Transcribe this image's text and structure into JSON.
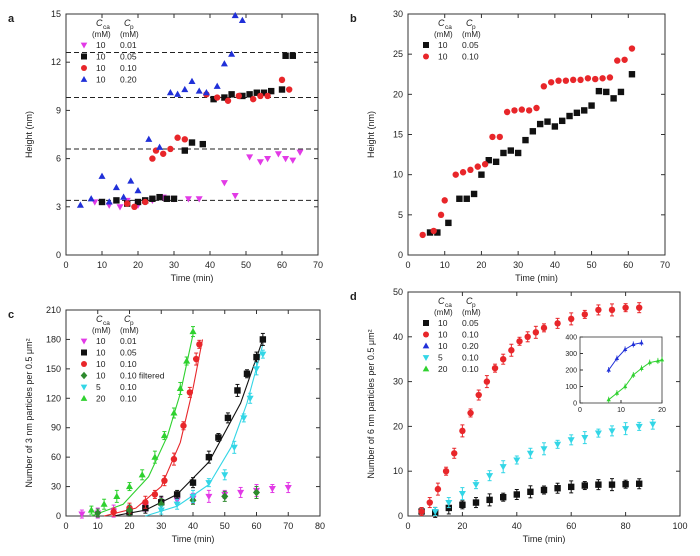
{
  "figure": {
    "panels": [
      "a",
      "b",
      "c",
      "d"
    ]
  },
  "chart_data": [
    {
      "panel": "a",
      "type": "scatter",
      "xlabel": "Time (min)",
      "ylabel": "Height (nm)",
      "xlim": [
        0,
        70
      ],
      "ylim": [
        0,
        15
      ],
      "xticks": [
        0,
        10,
        20,
        30,
        40,
        50,
        60,
        70
      ],
      "yticks": [
        0,
        3,
        6,
        9,
        12,
        15
      ],
      "hlines": [
        3.4,
        6.6,
        9.8,
        12.6
      ],
      "legend": {
        "header1": "C",
        "header1_sub": "ca",
        "header2": "C",
        "header2_sub": "p",
        "units": "(mM) (mM)",
        "position": "top-left"
      },
      "series": [
        {
          "name": "10 0.01",
          "ca": "10",
          "p": "0.01",
          "marker": "triangle-down",
          "color": "#e23ae6",
          "x": [
            8,
            12,
            15,
            17,
            20,
            24,
            27,
            30,
            34,
            37,
            44,
            47,
            51,
            54,
            56,
            59,
            61,
            63,
            65
          ],
          "y": [
            3.3,
            3.1,
            3.0,
            3.4,
            3.1,
            3.4,
            3.6,
            3.5,
            3.5,
            3.5,
            4.5,
            3.7,
            6.1,
            5.8,
            6.0,
            6.3,
            6.0,
            5.9,
            6.4
          ]
        },
        {
          "name": "10 0.05",
          "ca": "10",
          "p": "0.05",
          "marker": "square",
          "color": "#111111",
          "x": [
            10,
            14,
            17,
            20,
            22,
            24,
            26,
            28,
            30,
            33,
            35,
            38,
            41,
            44,
            46,
            49,
            51,
            53,
            55,
            57,
            60,
            61,
            63
          ],
          "y": [
            3.3,
            3.4,
            3.2,
            3.3,
            3.4,
            3.5,
            3.6,
            3.5,
            3.5,
            6.5,
            7.0,
            6.9,
            9.7,
            9.8,
            10.0,
            9.9,
            10.0,
            10.1,
            10.1,
            10.2,
            10.3,
            12.4,
            12.4
          ]
        },
        {
          "name": "10 0.10",
          "ca": "10",
          "p": "0.10",
          "marker": "circle",
          "color": "#e8262a",
          "x": [
            17,
            19,
            22,
            24,
            25,
            27,
            29,
            31,
            33,
            39,
            42,
            45,
            48,
            52,
            54,
            56,
            60,
            62
          ],
          "y": [
            3.2,
            3.0,
            3.3,
            6.0,
            6.5,
            6.3,
            6.6,
            7.3,
            7.2,
            10.0,
            9.8,
            9.6,
            9.9,
            9.7,
            9.9,
            9.9,
            10.9,
            10.3
          ]
        },
        {
          "name": "10 0.20",
          "ca": "10",
          "p": "0.20",
          "marker": "triangle-up",
          "color": "#2030d8",
          "x": [
            4,
            7,
            10,
            12,
            14,
            16,
            18,
            20,
            23,
            26,
            29,
            31,
            33,
            35,
            37,
            39,
            42,
            44,
            46,
            47,
            49
          ],
          "y": [
            3.1,
            3.5,
            4.9,
            3.3,
            4.2,
            3.6,
            4.6,
            4.0,
            7.2,
            6.7,
            10.1,
            10.0,
            10.3,
            10.8,
            10.2,
            10.1,
            10.5,
            11.9,
            12.5,
            14.9,
            14.6
          ]
        }
      ]
    },
    {
      "panel": "b",
      "type": "scatter",
      "xlabel": "Time (min)",
      "ylabel": "Height (nm)",
      "xlim": [
        0,
        70
      ],
      "ylim": [
        0,
        30
      ],
      "xticks": [
        0,
        10,
        20,
        30,
        40,
        50,
        60,
        70
      ],
      "yticks": [
        0,
        5,
        10,
        15,
        20,
        25,
        30
      ],
      "legend": {
        "header1": "C",
        "header1_sub": "ca",
        "header2": "C",
        "header2_sub": "p",
        "units": "(mM) (mM)",
        "position": "top-left"
      },
      "series": [
        {
          "name": "10 0.05",
          "ca": "10",
          "p": "0.05",
          "marker": "square",
          "color": "#111111",
          "x": [
            6,
            8,
            11,
            14,
            16,
            18,
            20,
            22,
            24,
            26,
            28,
            30,
            32,
            34,
            36,
            38,
            40,
            42,
            44,
            46,
            48,
            50,
            52,
            54,
            56,
            58,
            61
          ],
          "y": [
            2.8,
            2.8,
            4.0,
            7.0,
            7.0,
            7.6,
            10.0,
            11.8,
            11.6,
            12.7,
            13.0,
            12.7,
            14.3,
            15.4,
            16.3,
            16.6,
            16.0,
            16.7,
            17.3,
            17.7,
            18.0,
            18.6,
            20.4,
            20.3,
            19.5,
            20.3,
            22.5
          ]
        },
        {
          "name": "10 0.10",
          "ca": "10",
          "p": "0.10",
          "marker": "circle",
          "color": "#e8262a",
          "x": [
            4,
            7,
            9,
            10,
            13,
            15,
            17,
            19,
            21,
            23,
            25,
            27,
            29,
            31,
            33,
            35,
            37,
            39,
            41,
            43,
            45,
            47,
            49,
            51,
            53,
            55,
            57,
            59,
            61
          ],
          "y": [
            2.5,
            3.0,
            5.0,
            6.8,
            10.0,
            10.3,
            10.6,
            11.0,
            11.3,
            14.7,
            14.7,
            17.8,
            18.0,
            18.1,
            18.0,
            18.3,
            21.0,
            21.5,
            21.7,
            21.7,
            21.8,
            21.8,
            22.0,
            21.9,
            22.0,
            22.1,
            24.2,
            24.3,
            25.7
          ]
        }
      ]
    },
    {
      "panel": "c",
      "type": "scatter",
      "xlabel": "Time (min)",
      "ylabel": "Number of 3 nm particles per 0.5 μm²",
      "xlim": [
        0,
        80
      ],
      "ylim": [
        0,
        210
      ],
      "xticks": [
        0,
        10,
        20,
        30,
        40,
        50,
        60,
        70,
        80
      ],
      "yticks": [
        0,
        30,
        60,
        90,
        120,
        150,
        180,
        210
      ],
      "legend": {
        "header1": "C",
        "header1_sub": "ca",
        "header2": "C",
        "header2_sub": "p",
        "units": "(mM) (mM)",
        "position": "top-left"
      },
      "series": [
        {
          "name": "10 0.01",
          "ca": "10",
          "p": "0.01",
          "marker": "triangle-down",
          "color": "#e23ae6",
          "x": [
            5,
            10,
            15,
            20,
            25,
            30,
            35,
            40,
            45,
            50,
            55,
            60,
            65,
            70
          ],
          "y": [
            2,
            3,
            5,
            7,
            10,
            13,
            16,
            18,
            20,
            22,
            24,
            26,
            28,
            29
          ]
        },
        {
          "name": "10 0.05",
          "ca": "10",
          "p": "0.05",
          "marker": "square",
          "color": "#111111",
          "x": [
            20,
            25,
            30,
            35,
            40,
            45,
            48,
            51,
            54,
            57,
            60,
            62
          ],
          "y": [
            4,
            8,
            14,
            22,
            34,
            60,
            80,
            100,
            128,
            145,
            162,
            180
          ],
          "fit_x": [
            15,
            25,
            35,
            45,
            55,
            62
          ],
          "fit_y": [
            0,
            6,
            22,
            55,
            115,
            180
          ]
        },
        {
          "name": "10 0.10",
          "ca": "10",
          "p": "0.10",
          "marker": "circle",
          "color": "#e8262a",
          "x": [
            15,
            20,
            25,
            28,
            31,
            34,
            37,
            39,
            41,
            42
          ],
          "y": [
            4,
            8,
            14,
            22,
            36,
            58,
            92,
            126,
            160,
            175
          ],
          "fit_x": [
            12,
            22,
            30,
            36,
            40,
            43
          ],
          "fit_y": [
            0,
            8,
            30,
            75,
            130,
            180
          ]
        },
        {
          "name": "10 0.10 filtered",
          "ca": "10",
          "p": "0.10 filtered",
          "marker": "diamond",
          "color": "#2e8a2e",
          "x": [
            10,
            20,
            30,
            40,
            50,
            60
          ],
          "y": [
            3,
            6,
            12,
            16,
            20,
            24
          ]
        },
        {
          "name": "5 0.10",
          "ca": "5",
          "p": "0.10",
          "marker": "triangle-down",
          "color": "#33d6e6",
          "x": [
            30,
            35,
            40,
            45,
            50,
            53,
            56,
            58,
            60,
            62
          ],
          "y": [
            6,
            12,
            20,
            34,
            42,
            70,
            100,
            120,
            150,
            165
          ],
          "fit_x": [
            25,
            35,
            45,
            52,
            57,
            62
          ],
          "fit_y": [
            0,
            10,
            32,
            70,
            115,
            175
          ]
        },
        {
          "name": "20 0.10",
          "ca": "20",
          "p": "0.10",
          "marker": "triangle-up",
          "color": "#2fd12f",
          "x": [
            8,
            12,
            16,
            20,
            24,
            28,
            31,
            34,
            36,
            38,
            40
          ],
          "y": [
            6,
            12,
            20,
            30,
            42,
            60,
            82,
            105,
            130,
            158,
            188
          ],
          "fit_x": [
            8,
            18,
            26,
            32,
            36,
            40
          ],
          "fit_y": [
            0,
            12,
            40,
            82,
            125,
            185
          ]
        }
      ]
    },
    {
      "panel": "d",
      "type": "scatter",
      "xlabel": "Time (min)",
      "ylabel": "Number of 6 nm particles per 0.5 μm²",
      "xlim": [
        0,
        100
      ],
      "ylim": [
        0,
        50
      ],
      "xticks": [
        0,
        20,
        40,
        60,
        80,
        100
      ],
      "yticks": [
        0,
        10,
        20,
        30,
        40,
        50
      ],
      "legend": {
        "header1": "C",
        "header1_sub": "ca",
        "header2": "C",
        "header2_sub": "p",
        "units": "(mM) (mM)",
        "position": "top-left"
      },
      "series": [
        {
          "name": "10 0.05",
          "ca": "10",
          "p": "0.05",
          "marker": "square",
          "color": "#111111",
          "x": [
            5,
            10,
            15,
            20,
            25,
            30,
            35,
            40,
            45,
            50,
            55,
            60,
            65,
            70,
            75,
            80,
            85
          ],
          "y": [
            1,
            0.8,
            1.8,
            2.5,
            3.0,
            3.6,
            4.2,
            4.8,
            5.4,
            5.8,
            6.2,
            6.5,
            6.8,
            7.0,
            7.0,
            7.1,
            7.2
          ]
        },
        {
          "name": "10 0.10",
          "ca": "10",
          "p": "0.10",
          "marker": "circle",
          "color": "#e8262a",
          "x": [
            5,
            8,
            11,
            14,
            17,
            20,
            23,
            26,
            29,
            32,
            35,
            38,
            41,
            44,
            47,
            50,
            55,
            60,
            65,
            70,
            75,
            80,
            85
          ],
          "y": [
            1,
            3,
            6,
            10,
            14,
            19,
            23,
            27,
            30,
            33,
            35,
            37,
            39,
            40,
            41,
            42,
            43,
            44,
            45,
            46,
            46,
            46.5,
            46.5
          ]
        },
        {
          "name": "10 0.20",
          "ca": "10",
          "p": "0.20",
          "marker": "triangle-up",
          "color": "#2030d8",
          "x": [],
          "y": []
        },
        {
          "name": "5 0.10",
          "ca": "5",
          "p": "0.10",
          "marker": "triangle-down",
          "color": "#33d6e6",
          "x": [
            10,
            15,
            20,
            25,
            30,
            35,
            40,
            45,
            50,
            55,
            60,
            65,
            70,
            75,
            80,
            85,
            90
          ],
          "y": [
            1,
            3,
            5,
            7,
            9,
            11,
            12.5,
            14,
            15,
            16,
            17,
            17.5,
            18.5,
            19,
            19.5,
            20,
            20.5
          ]
        },
        {
          "name": "20 0.10",
          "ca": "20",
          "p": "0.10",
          "marker": "triangle-up",
          "color": "#2fd12f",
          "x": [],
          "y": []
        }
      ],
      "inset": {
        "xlim": [
          0,
          20
        ],
        "ylim": [
          0,
          400
        ],
        "xticks": [
          0,
          10,
          20
        ],
        "yticks": [
          0,
          100,
          200,
          300,
          400
        ],
        "series": [
          {
            "name": "10 0.20",
            "color": "#2030d8",
            "marker": "triangle-up",
            "x": [
              7,
              9,
              11,
              13,
              15
            ],
            "y": [
              200,
              270,
              325,
              355,
              365
            ]
          },
          {
            "name": "20 0.10",
            "color": "#2fd12f",
            "marker": "triangle-up",
            "x": [
              7,
              9,
              11,
              13,
              15,
              17,
              19,
              20
            ],
            "y": [
              20,
              60,
              100,
              170,
              210,
              245,
              255,
              262
            ]
          }
        ]
      }
    }
  ]
}
